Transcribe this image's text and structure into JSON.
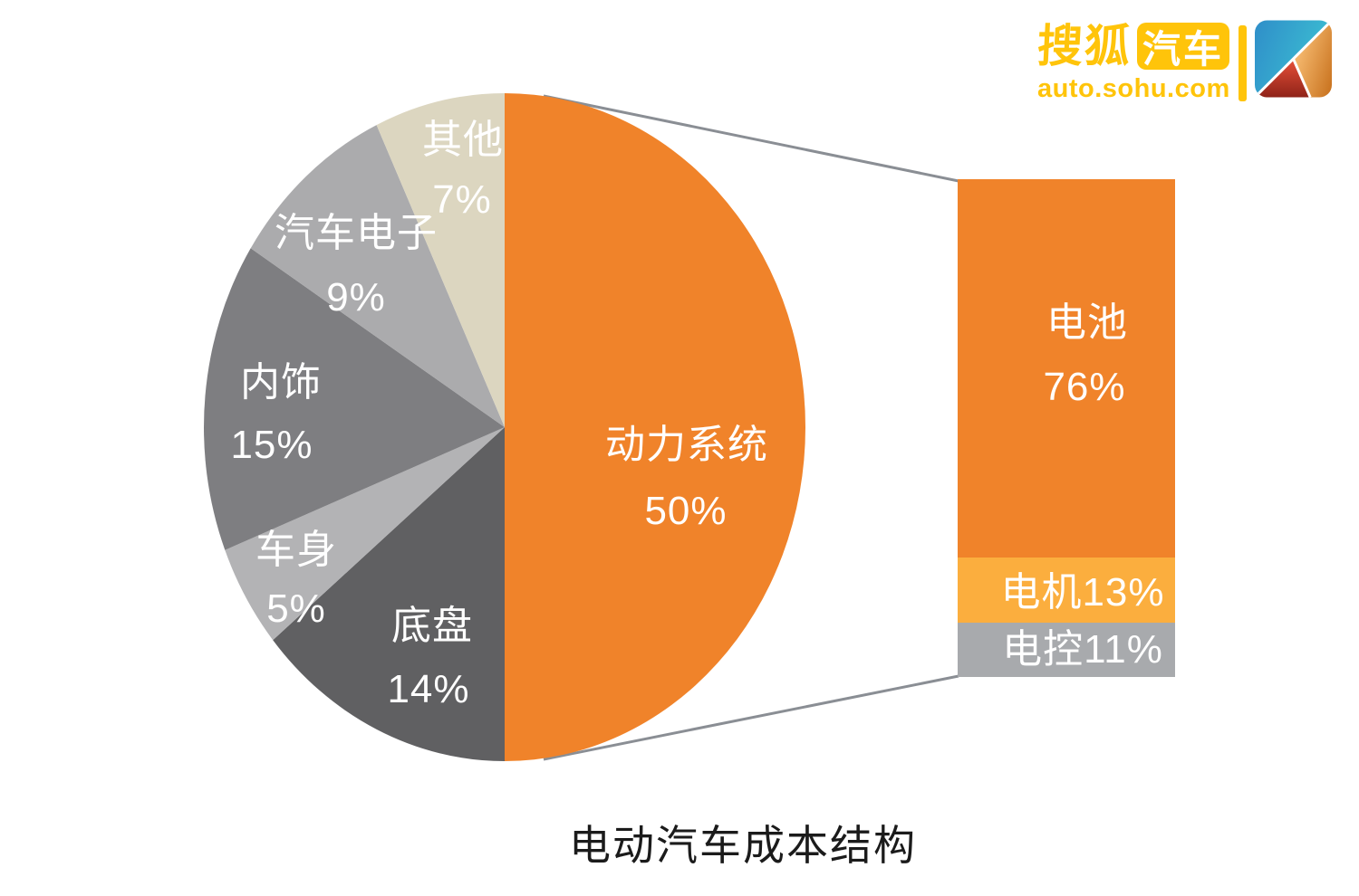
{
  "brand": {
    "logo_text_primary": "搜狐",
    "logo_text_secondary": "汽车",
    "logo_url": "auto.sohu.com",
    "brand_yellow": "#FFC40A",
    "icon_colors": {
      "blue": "#2F8EC9",
      "teal": "#3CBFD2",
      "orange": "#CE7A28",
      "red": "#C03425"
    }
  },
  "chart_data": {
    "type": "pie",
    "title": "电动汽车成本结构",
    "legend_position": "labels-on-slices",
    "slices": [
      {
        "label": "动力系统",
        "value": 50,
        "value_label": "50%",
        "color": "#F0832A"
      },
      {
        "label": "底盘",
        "value": 14,
        "value_label": "14%",
        "color": "#606062"
      },
      {
        "label": "车身",
        "value": 5,
        "value_label": "5%",
        "color": "#B3B3B5"
      },
      {
        "label": "内饰",
        "value": 15,
        "value_label": "15%",
        "color": "#7E7E81"
      },
      {
        "label": "汽车电子",
        "value": 9,
        "value_label": "9%",
        "color": "#ABABAD"
      },
      {
        "label": "其他",
        "value": 7,
        "value_label": "7%",
        "color": "#DCD6C0"
      }
    ],
    "breakout_bar": {
      "source_slice": "动力系统",
      "segments": [
        {
          "label": "电池",
          "value": 76,
          "value_label": "76%",
          "color": "#F0832A"
        },
        {
          "label": "电机",
          "value": 13,
          "value_label": "13%",
          "color": "#FBAE3E"
        },
        {
          "label": "电控",
          "value": 11,
          "value_label": "11%",
          "color": "#A8AAAD"
        }
      ]
    }
  }
}
